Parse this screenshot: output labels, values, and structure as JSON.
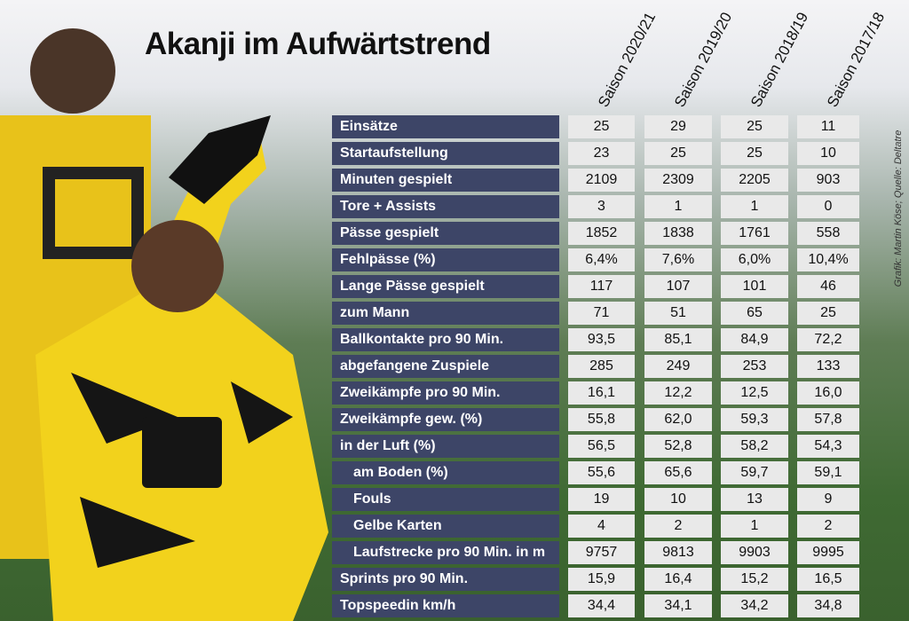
{
  "header": {
    "title": "Akanji im Aufwärtstrend",
    "credit": "Grafik: Martin Köse; Quelle: Deltatre"
  },
  "table": {
    "columns": [
      "Saison 2020/21",
      "Saison 2019/20",
      "Saison 2018/19",
      "Saison 2017/18"
    ],
    "rows": [
      [
        "Einsätze",
        "25",
        "29",
        "25",
        "11"
      ],
      [
        "Startaufstellung",
        "23",
        "25",
        "25",
        "10"
      ],
      [
        "Minuten gespielt",
        "2109",
        "2309",
        "2205",
        "903"
      ],
      [
        "Tore + Assists",
        "3",
        "1",
        "1",
        "0"
      ],
      [
        "Pässe gespielt",
        "1852",
        "1838",
        "1761",
        "558"
      ],
      [
        "Fehlpässe (%)",
        "6,4%",
        "7,6%",
        "6,0%",
        "10,4%"
      ],
      [
        "Lange Pässe gespielt",
        "117",
        "107",
        "101",
        "46"
      ],
      [
        "zum Mann",
        "71",
        "51",
        "65",
        "25"
      ],
      [
        "Ballkontakte pro 90 Min.",
        "93,5",
        "85,1",
        "84,9",
        "72,2"
      ],
      [
        "abgefangene Zuspiele",
        "285",
        "249",
        "253",
        "133"
      ],
      [
        "Zweikämpfe pro 90 Min.",
        "16,1",
        "12,2",
        "12,5",
        "16,0"
      ],
      [
        "Zweikämpfe gew. (%)",
        "55,8",
        "62,0",
        "59,3",
        "57,8"
      ],
      [
        "in der Luft (%)",
        "56,5",
        "52,8",
        "58,2",
        "54,3"
      ],
      [
        "am Boden (%)",
        "55,6",
        "65,6",
        "59,7",
        "59,1"
      ],
      [
        "Fouls",
        "19",
        "10",
        "13",
        "9"
      ],
      [
        "Gelbe Karten",
        "4",
        "2",
        "1",
        "2"
      ],
      [
        "Laufstrecke pro 90 Min. in m",
        "9757",
        "9813",
        "9903",
        "9995"
      ],
      [
        "Sprints pro 90 Min.",
        "15,9",
        "16,4",
        "15,2",
        "16,5"
      ],
      [
        "Topspeedin km/h",
        "34,4",
        "34,1",
        "34,2",
        "34,8"
      ]
    ]
  }
}
